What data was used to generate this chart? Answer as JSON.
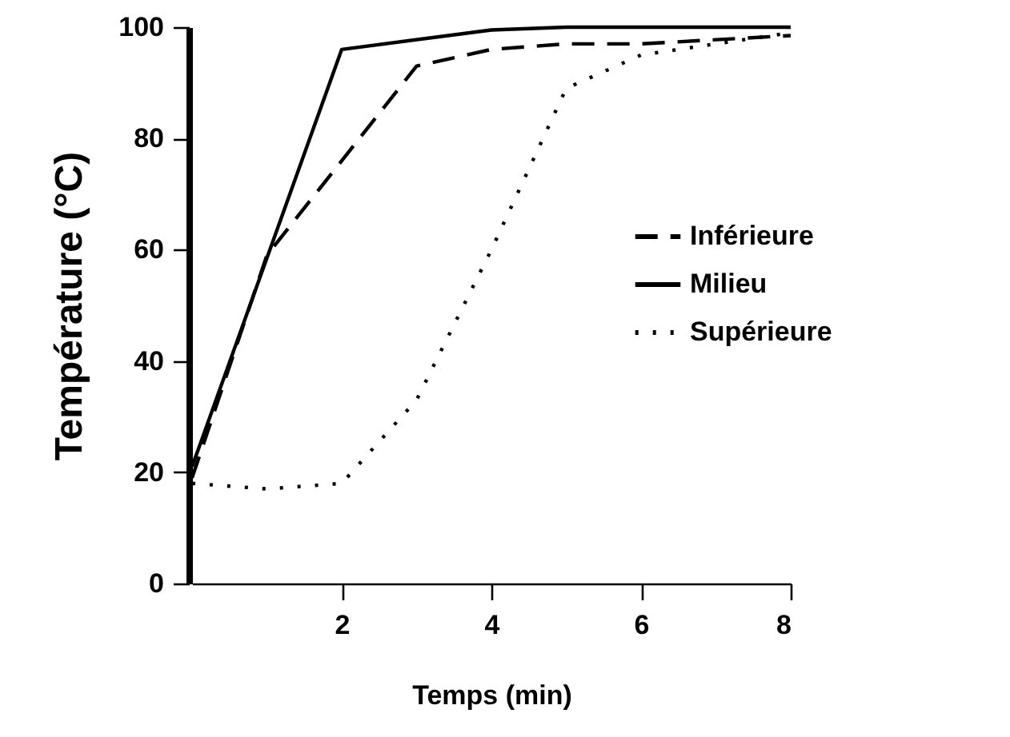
{
  "chart_data": {
    "type": "line",
    "xlabel": "Temps (min)",
    "ylabel": "Température (°C)",
    "x": [
      0,
      1,
      2,
      3,
      4,
      5,
      6,
      8
    ],
    "series": [
      {
        "name": "Inférieure",
        "color": "#000000",
        "line_style": "dashed",
        "values": [
          19,
          59,
          76,
          93,
          96,
          97,
          97,
          98.5
        ]
      },
      {
        "name": "Milieu",
        "color": "#000000",
        "line_style": "solid",
        "x": [
          0,
          2,
          4,
          5,
          6,
          8
        ],
        "values": [
          21,
          96,
          99.5,
          100,
          100,
          100
        ]
      },
      {
        "name": "Supérieure",
        "color": "#000000",
        "line_style": "dotted",
        "values": [
          18,
          17,
          18,
          33,
          60,
          89,
          95,
          99
        ]
      }
    ],
    "xlim": [
      0,
      8
    ],
    "xticks": [
      2,
      4,
      6,
      8
    ],
    "ylim": [
      0,
      100
    ],
    "yticks": [
      0,
      20,
      40,
      60,
      80,
      100
    ],
    "grid": false,
    "legend": "right",
    "marker": "none"
  }
}
